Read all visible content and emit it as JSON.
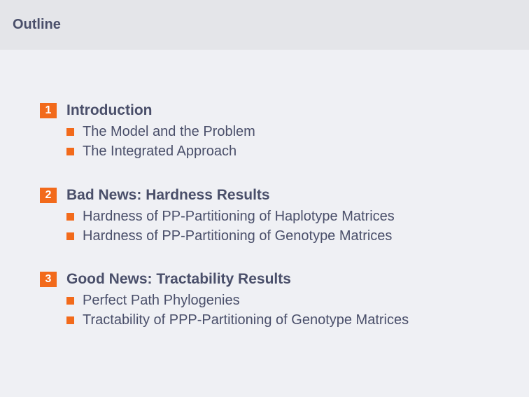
{
  "slide": {
    "title": "Outline"
  },
  "sections": [
    {
      "number": "1",
      "title": "Introduction",
      "items": [
        "The Model and the Problem",
        "The Integrated Approach"
      ]
    },
    {
      "number": "2",
      "title": "Bad News: Hardness Results",
      "items": [
        "Hardness of PP-Partitioning of Haplotype Matrices",
        "Hardness of PP-Partitioning of Genotype Matrices"
      ]
    },
    {
      "number": "3",
      "title": "Good News: Tractability Results",
      "items": [
        "Perfect Path Phylogenies",
        "Tractability of PPP-Partitioning of Genotype Matrices"
      ]
    }
  ],
  "colors": {
    "accent": "#f26a1b",
    "text": "#4a4f6a",
    "background": "#eff0f4",
    "header": "#e4e5e9"
  }
}
